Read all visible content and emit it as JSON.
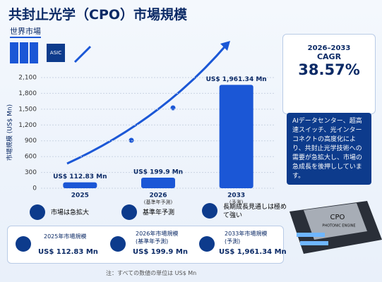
{
  "header": {
    "title": "共封止光学（CPO）市場規模",
    "subtitle": "世界市場",
    "asic": "ASIC"
  },
  "chart_data": {
    "type": "bar",
    "y_label": "市場規模 (US$ Mn)",
    "categories": [
      "2025",
      "2026",
      "2033"
    ],
    "category_notes": [
      null,
      "(基準年予測)",
      "(予測)"
    ],
    "values": [
      112.83,
      199.9,
      1961.34
    ],
    "value_labels": [
      "US$ 112.83 Mn",
      "US$ 199.9 Mn",
      "US$ 1,961.34 Mn"
    ],
    "color": "#1b57d6",
    "ylim": [
      0,
      2100
    ],
    "yticks": [
      0,
      300,
      600,
      900,
      {
        "value": 1200,
        "label": "1,200"
      },
      {
        "value": 1500,
        "label": "1,500"
      },
      {
        "value": 1800,
        "label": "1,800"
      },
      {
        "value": 2100,
        "label": "2,100"
      }
    ],
    "grid": true
  },
  "cagr": {
    "period": "2026–2033",
    "label": "CAGR",
    "value": "38.57%"
  },
  "description": "AIデータセンター、超高速スイッチ、光インターコネクトの高度化により、共封止光学技術への需要が急拡大し、市場の急成長を後押ししています。",
  "features": [
    "市場は急拡大",
    "基準年予測",
    "長期成長見通しは極めて強い"
  ],
  "cards": [
    {
      "label": "2025年市場規模",
      "value": "US$ 112.83 Mn"
    },
    {
      "label": "2026年市場規模\n(基準年予測)",
      "value": "US$ 199.9 Mn"
    },
    {
      "label": "2033年市場規模\n(予測)",
      "value": "US$ 1,961.34 Mn"
    }
  ],
  "note": "注：すべての数値の単位は US$ Mn",
  "chip": {
    "name": "CPO",
    "sub": "PHOTONIC ENGINE"
  }
}
